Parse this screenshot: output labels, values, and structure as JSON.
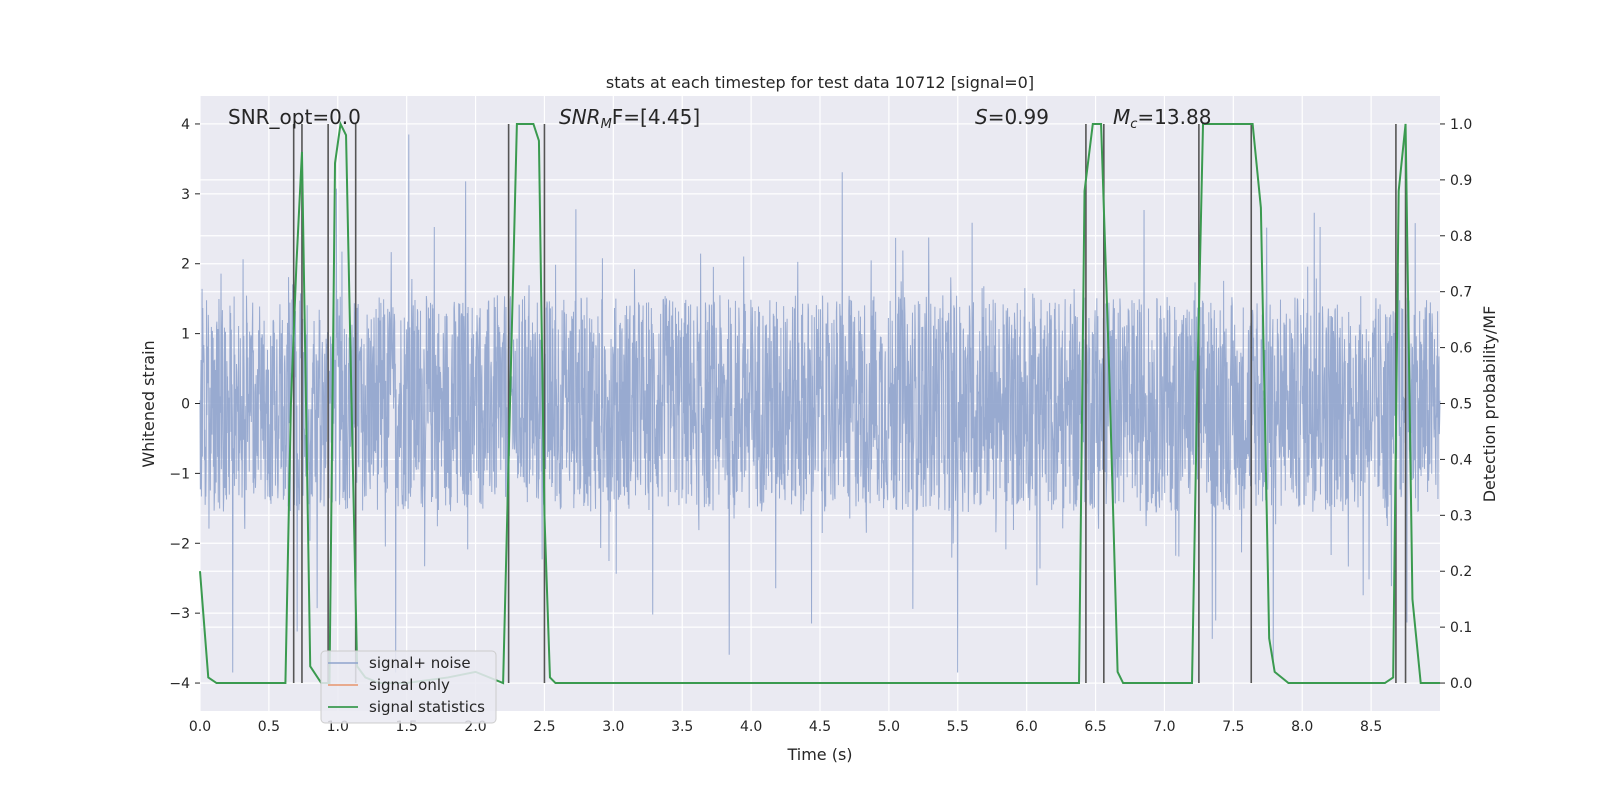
{
  "chart_data": {
    "type": "line",
    "title": "stats at each timestep for test data 10712 [signal=0]",
    "xlabel": "Time (s)",
    "ylabel": "Whitened strain",
    "y2label": "Detection probability/MF",
    "xlim": [
      0.0,
      9.0
    ],
    "ylim": [
      -4.4,
      4.4
    ],
    "y2lim": [
      -0.05,
      1.05
    ],
    "x_ticks": [
      "0.0",
      "0.5",
      "1.0",
      "1.5",
      "2.0",
      "2.5",
      "3.0",
      "3.5",
      "4.0",
      "4.5",
      "5.0",
      "5.5",
      "6.0",
      "6.5",
      "7.0",
      "7.5",
      "8.0",
      "8.5"
    ],
    "y_ticks": [
      "4",
      "3",
      "2",
      "1",
      "0",
      "−1",
      "−2",
      "−3",
      "−4"
    ],
    "y2_ticks": [
      "1.0",
      "0.9",
      "0.8",
      "0.7",
      "0.6",
      "0.5",
      "0.4",
      "0.3",
      "0.2",
      "0.1",
      "0.0"
    ],
    "grid": true,
    "legend_position": "lower-left",
    "annotations": {
      "snr_opt": "SNR_opt=0.0",
      "snr_mf_main": "SNR",
      "snr_mf_sub": "M",
      "snr_mf_rest": "F=[4.45]",
      "s_main": "S",
      "s_rest": "=0.99",
      "mc_main": "M",
      "mc_sub": "c",
      "mc_rest": "=13.88"
    },
    "series": [
      {
        "name": "signal+ noise",
        "color": "#8fa3cc",
        "description_values": "noise band mostly within ±1.6 with spikes to about ±3.9"
      },
      {
        "name": "signal only",
        "color": "#e8956d",
        "values": []
      },
      {
        "name": "signal statistics",
        "color": "#3a9a4f",
        "x": [
          0.0,
          0.06,
          0.12,
          0.3,
          0.5,
          0.62,
          0.66,
          0.7,
          0.74,
          0.8,
          0.88,
          0.94,
          0.98,
          1.02,
          1.06,
          1.1,
          1.14,
          1.2,
          1.3,
          1.5,
          1.8,
          2.0,
          2.2,
          2.26,
          2.3,
          2.36,
          2.42,
          2.46,
          2.5,
          2.54,
          2.58,
          2.7,
          3.0,
          4.0,
          5.0,
          6.0,
          6.38,
          6.42,
          6.48,
          6.54,
          6.6,
          6.66,
          6.7,
          6.74,
          6.8,
          7.0,
          7.2,
          7.24,
          7.28,
          7.32,
          7.4,
          7.5,
          7.6,
          7.64,
          7.7,
          7.76,
          7.8,
          7.9,
          8.0,
          8.3,
          8.6,
          8.66,
          8.7,
          8.75,
          8.8,
          8.86,
          8.9,
          9.0
        ],
        "y": [
          0.2,
          0.01,
          0.0,
          0.0,
          0.0,
          0.0,
          0.5,
          0.75,
          0.95,
          0.03,
          0.0,
          0.0,
          0.93,
          1.0,
          0.98,
          0.5,
          0.03,
          0.01,
          0.0,
          0.0,
          0.01,
          0.02,
          0.0,
          0.6,
          1.0,
          1.0,
          1.0,
          0.97,
          0.3,
          0.01,
          0.0,
          0.0,
          0.0,
          0.0,
          0.0,
          0.0,
          0.0,
          0.88,
          1.0,
          1.0,
          0.55,
          0.02,
          0.0,
          0.0,
          0.0,
          0.0,
          0.0,
          0.55,
          1.0,
          1.0,
          1.0,
          1.0,
          1.0,
          1.0,
          0.85,
          0.08,
          0.02,
          0.0,
          0.0,
          0.0,
          0.0,
          0.01,
          0.88,
          1.0,
          0.15,
          0.0,
          0.0,
          0.0
        ]
      }
    ],
    "vertical_markers": [
      0.68,
      0.74,
      0.93,
      1.13,
      2.24,
      2.5,
      6.43,
      6.56,
      7.25,
      7.63,
      8.68,
      8.75
    ],
    "marker_color": "#555555"
  }
}
